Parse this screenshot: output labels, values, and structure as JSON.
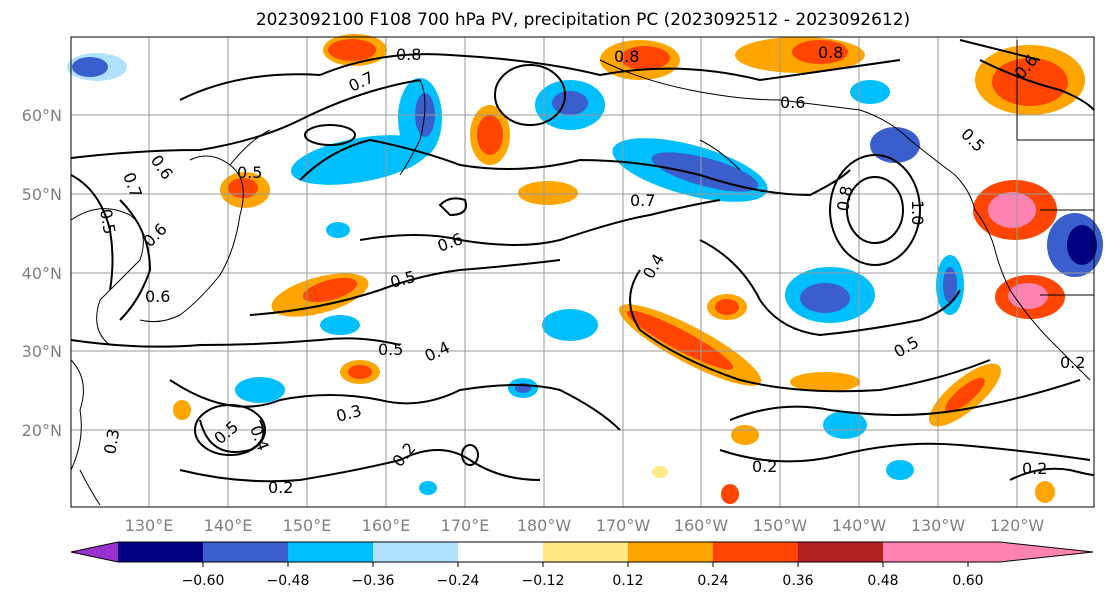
{
  "figure": {
    "title": "2023092100 F108 700 hPa PV, precipitation PC (2023092512 - 2023092612)"
  },
  "map": {
    "lat_labels": [
      "60°N",
      "50°N",
      "40°N",
      "30°N",
      "20°N"
    ],
    "lon_labels": [
      "130°E",
      "140°E",
      "150°E",
      "160°E",
      "170°E",
      "180°W",
      "170°W",
      "160°W",
      "150°W",
      "140°W",
      "130°W",
      "120°W"
    ],
    "contour_labels": [
      "0.8",
      "0.8",
      "0.8",
      "0.7",
      "0.6",
      "0.5",
      "0.7",
      "0.6",
      "0.5",
      "0.7",
      "0.6",
      "0.5",
      "0.4",
      "0.4",
      "0.5",
      "0.6",
      "0.8",
      "1.0",
      "0.5",
      "0.3",
      "0.2",
      "0.2",
      "0.2",
      "0.2",
      "0.4",
      "0.5",
      "0.2",
      "0.6",
      "0.6",
      "0.5",
      "0.3"
    ]
  },
  "colorbar": {
    "tick_labels": [
      "−0.60",
      "−0.48",
      "−0.36",
      "−0.24",
      "−0.12",
      "0.12",
      "0.24",
      "0.36",
      "0.48",
      "0.60"
    ],
    "colors": [
      "#9932cc",
      "#000080",
      "#3a5fcd",
      "#00bfff",
      "#b0e2ff",
      "#ffffff",
      "#ffe885",
      "#ffa500",
      "#ff4500",
      "#b22222",
      "#ff83b0"
    ]
  },
  "palette": {
    "pos1": "#ffe885",
    "pos2": "#ffa500",
    "pos3": "#ff4500",
    "pos4": "#b22222",
    "pos5": "#ff83b0",
    "neg1": "#b0e2ff",
    "neg2": "#00bfff",
    "neg3": "#3a5fcd",
    "neg4": "#000080",
    "neg5": "#9932cc"
  }
}
